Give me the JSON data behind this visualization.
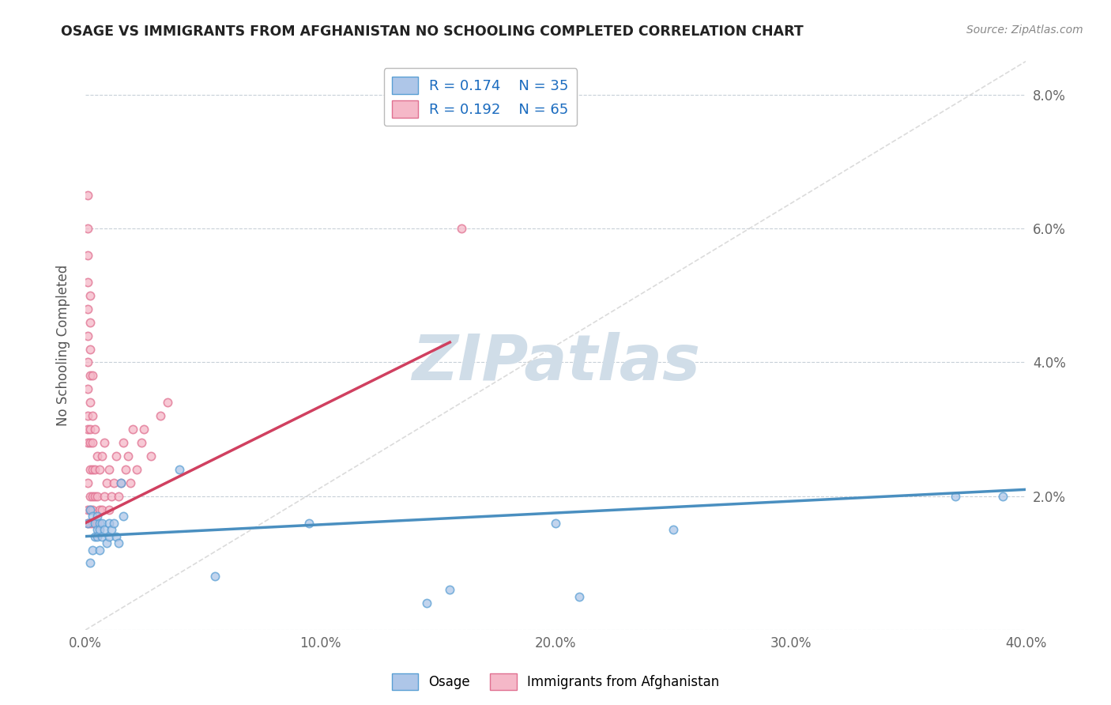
{
  "title": "OSAGE VS IMMIGRANTS FROM AFGHANISTAN NO SCHOOLING COMPLETED CORRELATION CHART",
  "source": "Source: ZipAtlas.com",
  "ylabel": "No Schooling Completed",
  "xlim": [
    0.0,
    0.4
  ],
  "ylim": [
    0.0,
    0.085
  ],
  "xticks": [
    0.0,
    0.1,
    0.2,
    0.3,
    0.4
  ],
  "xticklabels": [
    "0.0%",
    "10.0%",
    "20.0%",
    "30.0%",
    "40.0%"
  ],
  "yticks": [
    0.0,
    0.02,
    0.04,
    0.06,
    0.08
  ],
  "yticklabels": [
    "",
    "2.0%",
    "4.0%",
    "6.0%",
    "8.0%"
  ],
  "legend_r1": "R = 0.174",
  "legend_n1": "N = 35",
  "legend_r2": "R = 0.192",
  "legend_n2": "N = 65",
  "color_osage_face": "#aec6e8",
  "color_osage_edge": "#5a9fd4",
  "color_afghanistan_face": "#f5b8c8",
  "color_afghanistan_edge": "#e07090",
  "color_line_osage": "#4a8fc0",
  "color_line_afghanistan": "#d04060",
  "color_diag_line": "#cccccc",
  "watermark": "ZIPatlas",
  "watermark_color": "#d0dde8",
  "osage_x": [
    0.001,
    0.002,
    0.002,
    0.003,
    0.003,
    0.004,
    0.004,
    0.005,
    0.005,
    0.005,
    0.006,
    0.006,
    0.006,
    0.007,
    0.007,
    0.008,
    0.009,
    0.01,
    0.01,
    0.011,
    0.012,
    0.013,
    0.014,
    0.015,
    0.016,
    0.04,
    0.055,
    0.095,
    0.145,
    0.155,
    0.2,
    0.21,
    0.25,
    0.37,
    0.39
  ],
  "osage_y": [
    0.016,
    0.01,
    0.018,
    0.012,
    0.017,
    0.014,
    0.016,
    0.015,
    0.014,
    0.017,
    0.016,
    0.015,
    0.012,
    0.014,
    0.016,
    0.015,
    0.013,
    0.016,
    0.014,
    0.015,
    0.016,
    0.014,
    0.013,
    0.022,
    0.017,
    0.024,
    0.008,
    0.016,
    0.004,
    0.006,
    0.016,
    0.005,
    0.015,
    0.02,
    0.02
  ],
  "afghanistan_x": [
    0.001,
    0.001,
    0.001,
    0.001,
    0.001,
    0.001,
    0.001,
    0.001,
    0.001,
    0.001,
    0.001,
    0.001,
    0.001,
    0.001,
    0.002,
    0.002,
    0.002,
    0.002,
    0.002,
    0.002,
    0.002,
    0.002,
    0.002,
    0.002,
    0.002,
    0.003,
    0.003,
    0.003,
    0.003,
    0.003,
    0.003,
    0.003,
    0.004,
    0.004,
    0.004,
    0.004,
    0.005,
    0.005,
    0.005,
    0.006,
    0.006,
    0.007,
    0.007,
    0.008,
    0.008,
    0.009,
    0.01,
    0.01,
    0.011,
    0.012,
    0.013,
    0.014,
    0.015,
    0.016,
    0.017,
    0.018,
    0.019,
    0.02,
    0.022,
    0.024,
    0.025,
    0.028,
    0.032,
    0.035,
    0.16
  ],
  "afghanistan_y": [
    0.016,
    0.018,
    0.022,
    0.028,
    0.03,
    0.032,
    0.036,
    0.04,
    0.044,
    0.048,
    0.052,
    0.056,
    0.06,
    0.065,
    0.016,
    0.018,
    0.02,
    0.024,
    0.028,
    0.03,
    0.034,
    0.038,
    0.042,
    0.046,
    0.05,
    0.016,
    0.018,
    0.02,
    0.024,
    0.028,
    0.032,
    0.038,
    0.016,
    0.02,
    0.024,
    0.03,
    0.016,
    0.02,
    0.026,
    0.018,
    0.024,
    0.018,
    0.026,
    0.02,
    0.028,
    0.022,
    0.018,
    0.024,
    0.02,
    0.022,
    0.026,
    0.02,
    0.022,
    0.028,
    0.024,
    0.026,
    0.022,
    0.03,
    0.024,
    0.028,
    0.03,
    0.026,
    0.032,
    0.034,
    0.06
  ]
}
